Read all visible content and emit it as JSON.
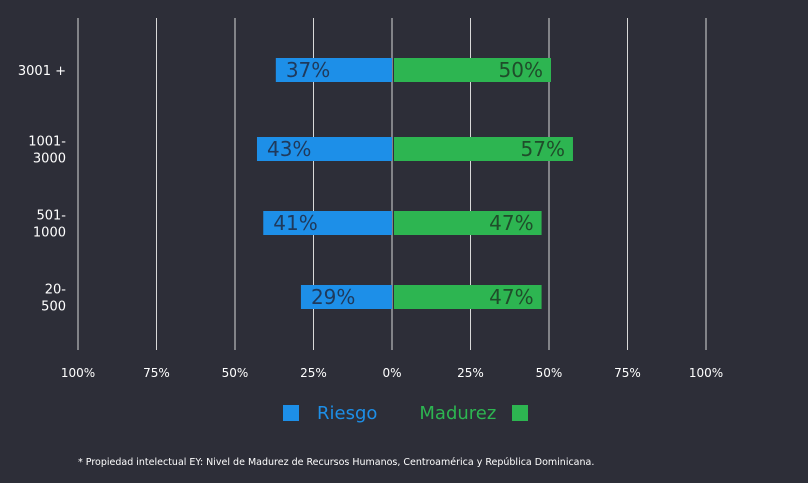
{
  "chart_data": {
    "type": "bar",
    "orientation": "horizontal-diverging",
    "categories": [
      "3001 +",
      "1001-3000",
      "501-1000",
      "20-500"
    ],
    "category_lines": [
      [
        "3001 +"
      ],
      [
        "1001-",
        "3000"
      ],
      [
        "501-",
        "1000"
      ],
      [
        "20-",
        "500"
      ]
    ],
    "series": [
      {
        "name": "Riesgo",
        "color": "#1d8fe8",
        "label_color": "#1f3a5c",
        "values": [
          37,
          43,
          41,
          29
        ],
        "labels": [
          "37%",
          "43%",
          "41%",
          "29%"
        ]
      },
      {
        "name": "Madurez",
        "color": "#2db551",
        "label_color": "#1f4d2a",
        "values": [
          50,
          57,
          47,
          47
        ],
        "labels": [
          "50%",
          "57%",
          "47%",
          "47%"
        ]
      }
    ],
    "xlim": [
      -100,
      100
    ],
    "ticks": [
      -100,
      -75,
      -50,
      -25,
      0,
      25,
      50,
      75,
      100
    ],
    "tick_labels": [
      "100%",
      "75%",
      "50%",
      "25%",
      "0%",
      "25%",
      "50%",
      "75%",
      "100%"
    ],
    "grid": true,
    "legend_position": "bottom-center"
  },
  "legend": {
    "riesgo_label": "Riesgo",
    "madurez_label": "Madurez",
    "riesgo_color": "#1d8fe8",
    "madurez_color": "#2db551"
  },
  "footnote": "* Propiedad intelectual EY: Nivel de Madurez de Recursos Humanos, Centroamérica y República Dominicana."
}
